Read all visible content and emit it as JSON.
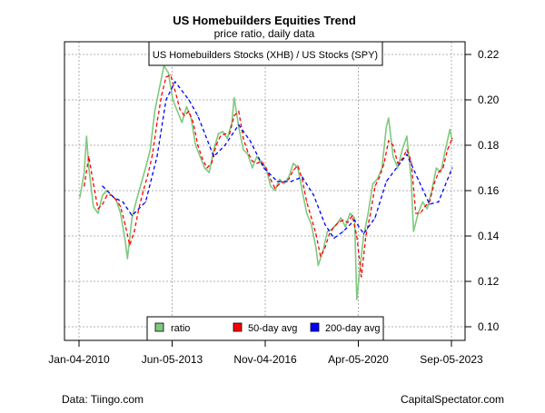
{
  "chart_data": {
    "type": "line",
    "title": "US Homebuilders Equities Trend",
    "subtitle": "price ratio, daily data",
    "inset_label": "US Homebuilders Stocks (XHB) / US Stocks (SPY)",
    "xlabel": "",
    "ylabel": "",
    "ylim": [
      0.095,
      0.226
    ],
    "y_ticks": [
      "0.10",
      "0.12",
      "0.14",
      "0.16",
      "0.18",
      "0.20",
      "0.22"
    ],
    "x_ticks": [
      {
        "date": "2010-01-04",
        "label": "Jan-04-2010"
      },
      {
        "date": "2013-06-05",
        "label": "Jun-05-2013"
      },
      {
        "date": "2016-11-04",
        "label": "Nov-04-2016"
      },
      {
        "date": "2020-04-05",
        "label": "Apr-05-2020"
      },
      {
        "date": "2023-09-05",
        "label": "Sep-05-2023"
      }
    ],
    "grid": true,
    "legend_position": "bottom-center",
    "series": [
      {
        "name": "ratio",
        "color": "#7fc97f",
        "style": "solid",
        "x": [
          "2010-01",
          "2010-03",
          "2010-04",
          "2010-05",
          "2010-07",
          "2010-09",
          "2010-11",
          "2011-01",
          "2011-03",
          "2011-05",
          "2011-07",
          "2011-09",
          "2011-10",
          "2011-12",
          "2012-02",
          "2012-04",
          "2012-06",
          "2012-08",
          "2012-10",
          "2012-12",
          "2013-02",
          "2013-04",
          "2013-06",
          "2013-08",
          "2013-10",
          "2013-12",
          "2014-02",
          "2014-04",
          "2014-06",
          "2014-08",
          "2014-10",
          "2014-12",
          "2015-02",
          "2015-04",
          "2015-06",
          "2015-08",
          "2015-09",
          "2015-11",
          "2016-01",
          "2016-03",
          "2016-05",
          "2016-07",
          "2016-09",
          "2016-11",
          "2017-01",
          "2017-03",
          "2017-05",
          "2017-07",
          "2017-09",
          "2017-11",
          "2018-01",
          "2018-03",
          "2018-05",
          "2018-07",
          "2018-09",
          "2018-10",
          "2018-12",
          "2019-02",
          "2019-04",
          "2019-06",
          "2019-08",
          "2019-10",
          "2019-12",
          "2020-02",
          "2020-03",
          "2020-04",
          "2020-06",
          "2020-08",
          "2020-10",
          "2020-12",
          "2021-02",
          "2021-04",
          "2021-05",
          "2021-07",
          "2021-09",
          "2021-11",
          "2022-01",
          "2022-03",
          "2022-04",
          "2022-06",
          "2022-08",
          "2022-10",
          "2022-12",
          "2023-02",
          "2023-04",
          "2023-06",
          "2023-08",
          "2023-09"
        ],
        "y": [
          0.157,
          0.168,
          0.184,
          0.17,
          0.153,
          0.15,
          0.158,
          0.16,
          0.158,
          0.156,
          0.15,
          0.138,
          0.13,
          0.148,
          0.156,
          0.163,
          0.17,
          0.178,
          0.195,
          0.205,
          0.215,
          0.212,
          0.2,
          0.195,
          0.19,
          0.197,
          0.192,
          0.18,
          0.175,
          0.17,
          0.168,
          0.178,
          0.185,
          0.186,
          0.183,
          0.19,
          0.201,
          0.188,
          0.178,
          0.176,
          0.17,
          0.175,
          0.172,
          0.17,
          0.162,
          0.16,
          0.165,
          0.163,
          0.166,
          0.172,
          0.17,
          0.16,
          0.15,
          0.145,
          0.135,
          0.127,
          0.133,
          0.142,
          0.143,
          0.145,
          0.148,
          0.144,
          0.15,
          0.148,
          0.112,
          0.122,
          0.14,
          0.15,
          0.163,
          0.165,
          0.17,
          0.188,
          0.192,
          0.175,
          0.17,
          0.178,
          0.184,
          0.165,
          0.142,
          0.15,
          0.155,
          0.152,
          0.16,
          0.17,
          0.168,
          0.178,
          0.187,
          0.182
        ]
      },
      {
        "name": "50-day avg",
        "color": "#ff0000",
        "style": "dashed",
        "x": [
          "2010-03",
          "2010-05",
          "2010-07",
          "2010-09",
          "2010-11",
          "2011-01",
          "2011-03",
          "2011-05",
          "2011-07",
          "2011-09",
          "2011-11",
          "2012-01",
          "2012-03",
          "2012-05",
          "2012-07",
          "2012-09",
          "2012-11",
          "2013-01",
          "2013-03",
          "2013-05",
          "2013-07",
          "2013-09",
          "2013-11",
          "2014-01",
          "2014-03",
          "2014-05",
          "2014-07",
          "2014-09",
          "2014-11",
          "2015-01",
          "2015-03",
          "2015-05",
          "2015-07",
          "2015-09",
          "2015-11",
          "2016-01",
          "2016-03",
          "2016-05",
          "2016-07",
          "2016-09",
          "2016-11",
          "2017-01",
          "2017-03",
          "2017-05",
          "2017-07",
          "2017-09",
          "2017-11",
          "2018-01",
          "2018-03",
          "2018-05",
          "2018-07",
          "2018-09",
          "2018-11",
          "2019-01",
          "2019-03",
          "2019-05",
          "2019-07",
          "2019-09",
          "2019-11",
          "2020-01",
          "2020-03",
          "2020-05",
          "2020-07",
          "2020-09",
          "2020-11",
          "2021-01",
          "2021-03",
          "2021-05",
          "2021-07",
          "2021-09",
          "2021-11",
          "2022-01",
          "2022-03",
          "2022-05",
          "2022-07",
          "2022-09",
          "2022-11",
          "2023-01",
          "2023-03",
          "2023-05",
          "2023-07",
          "2023-09"
        ],
        "y": [
          0.162,
          0.175,
          0.163,
          0.152,
          0.154,
          0.158,
          0.158,
          0.156,
          0.153,
          0.145,
          0.136,
          0.142,
          0.152,
          0.16,
          0.167,
          0.176,
          0.19,
          0.202,
          0.21,
          0.211,
          0.204,
          0.196,
          0.193,
          0.195,
          0.19,
          0.18,
          0.174,
          0.17,
          0.172,
          0.18,
          0.184,
          0.185,
          0.185,
          0.193,
          0.195,
          0.183,
          0.177,
          0.173,
          0.172,
          0.173,
          0.17,
          0.165,
          0.161,
          0.163,
          0.164,
          0.165,
          0.169,
          0.171,
          0.165,
          0.155,
          0.148,
          0.141,
          0.131,
          0.135,
          0.141,
          0.144,
          0.146,
          0.147,
          0.146,
          0.149,
          0.14,
          0.122,
          0.14,
          0.15,
          0.162,
          0.166,
          0.172,
          0.182,
          0.18,
          0.172,
          0.174,
          0.178,
          0.173,
          0.15,
          0.15,
          0.153,
          0.155,
          0.163,
          0.168,
          0.17,
          0.178,
          0.183
        ]
      },
      {
        "name": "200-day avg",
        "color": "#0000ff",
        "style": "dashed",
        "x": [
          "2010-11",
          "2011-04",
          "2011-08",
          "2011-12",
          "2012-06",
          "2012-11",
          "2013-03",
          "2013-07",
          "2014-01",
          "2014-05",
          "2014-12",
          "2015-05",
          "2015-11",
          "2016-04",
          "2016-10",
          "2017-04",
          "2017-10",
          "2018-03",
          "2018-08",
          "2019-01",
          "2019-05",
          "2019-09",
          "2020-02",
          "2020-06",
          "2020-11",
          "2021-04",
          "2021-10",
          "2022-01",
          "2022-06",
          "2022-11",
          "2023-03",
          "2023-09"
        ],
        "y": [
          0.162,
          0.157,
          0.155,
          0.149,
          0.155,
          0.175,
          0.2,
          0.208,
          0.2,
          0.193,
          0.175,
          0.18,
          0.189,
          0.182,
          0.17,
          0.164,
          0.164,
          0.166,
          0.158,
          0.145,
          0.139,
          0.142,
          0.147,
          0.141,
          0.148,
          0.164,
          0.172,
          0.176,
          0.165,
          0.154,
          0.155,
          0.17
        ]
      }
    ]
  },
  "legend": {
    "items": [
      "ratio",
      "50-day avg",
      "200-day avg"
    ]
  },
  "footer": {
    "source": "Data: Tiingo.com",
    "credit": "CapitalSpectator.com"
  }
}
